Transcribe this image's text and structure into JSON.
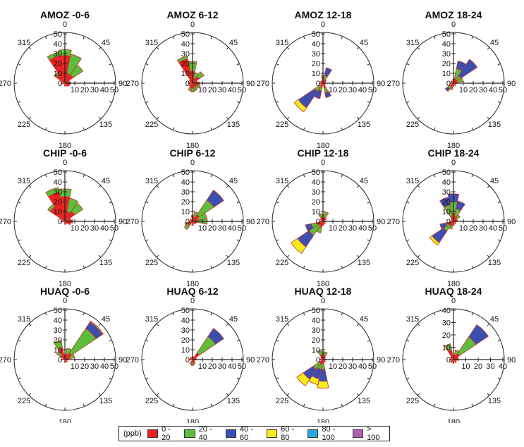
{
  "direction_labels": [
    "0",
    "45",
    "90",
    "135",
    "180",
    "225",
    "270",
    "315"
  ],
  "legend": {
    "unit": "(ppb)",
    "entries": [
      {
        "label": "0 - 20",
        "color": "#ee2222"
      },
      {
        "label": "20 - 40",
        "color": "#5cbf3c"
      },
      {
        "label": "40 - 60",
        "color": "#3a4fb0"
      },
      {
        "label": "60 - 80",
        "color": "#f5ec1a"
      },
      {
        "label": "80 - 100",
        "color": "#2aa7e0"
      },
      {
        "label": "> 100",
        "color": "#b25db0"
      }
    ]
  },
  "chart_data": [
    {
      "type": "polar-stacked-bar",
      "title": "AMOZ -0-6",
      "rmax": 50,
      "ticks": [
        "10",
        "20",
        "30",
        "40",
        "50"
      ],
      "wedges": [
        {
          "dir": 0,
          "stack": [
            28,
            6
          ]
        },
        {
          "dir": 22.5,
          "stack": [
            10,
            20
          ]
        },
        {
          "dir": 45,
          "stack": [
            10,
            12
          ]
        },
        {
          "dir": 67.5,
          "stack": [
            5
          ]
        },
        {
          "dir": 90,
          "stack": [
            6
          ]
        },
        {
          "dir": 112.5,
          "stack": [
            5
          ]
        },
        {
          "dir": 135,
          "stack": [
            4
          ]
        },
        {
          "dir": 180,
          "stack": [
            3
          ]
        },
        {
          "dir": 270,
          "stack": [
            4
          ]
        },
        {
          "dir": 315,
          "stack": [
            10,
            3
          ]
        },
        {
          "dir": 337.5,
          "stack": [
            28,
            4
          ]
        }
      ]
    },
    {
      "type": "polar-stacked-bar",
      "title": "AMOZ 6-12",
      "rmax": 50,
      "ticks": [
        "10",
        "20",
        "30",
        "40",
        "50"
      ],
      "wedges": [
        {
          "dir": 0,
          "stack": [
            12,
            10
          ]
        },
        {
          "dir": 22.5,
          "stack": [
            5,
            6
          ]
        },
        {
          "dir": 45,
          "stack": [
            8,
            6
          ]
        },
        {
          "dir": 67.5,
          "stack": [
            5
          ]
        },
        {
          "dir": 90,
          "stack": [
            7
          ]
        },
        {
          "dir": 112.5,
          "stack": [
            5,
            3
          ]
        },
        {
          "dir": 135,
          "stack": [
            4,
            3
          ]
        },
        {
          "dir": 157.5,
          "stack": [
            4,
            4
          ]
        },
        {
          "dir": 180,
          "stack": [
            5,
            4
          ]
        },
        {
          "dir": 202.5,
          "stack": [
            5,
            3
          ]
        },
        {
          "dir": 225,
          "stack": [
            4
          ]
        },
        {
          "dir": 270,
          "stack": [
            4
          ]
        },
        {
          "dir": 315,
          "stack": [
            4
          ]
        },
        {
          "dir": 337.5,
          "stack": [
            25,
            3
          ]
        }
      ]
    },
    {
      "type": "polar-stacked-bar",
      "title": "AMOZ 12-18",
      "rmax": 50,
      "ticks": [
        "10",
        "20",
        "30",
        "40",
        "50"
      ],
      "wedges": [
        {
          "dir": 0,
          "stack": [
            5,
            3
          ]
        },
        {
          "dir": 22.5,
          "stack": [
            3,
            5,
            8
          ]
        },
        {
          "dir": 45,
          "stack": [
            4
          ]
        },
        {
          "dir": 90,
          "stack": [
            3
          ]
        },
        {
          "dir": 135,
          "stack": [
            3
          ]
        },
        {
          "dir": 157.5,
          "stack": [
            5,
            5,
            5
          ]
        },
        {
          "dir": 202.5,
          "stack": [
            4,
            4,
            8
          ]
        },
        {
          "dir": 225,
          "stack": [
            3,
            7,
            20,
            5
          ]
        },
        {
          "dir": 270,
          "stack": [
            3
          ]
        },
        {
          "dir": 315,
          "stack": [
            3
          ]
        }
      ]
    },
    {
      "type": "polar-stacked-bar",
      "title": "AMOZ 18-24",
      "rmax": 50,
      "ticks": [
        "10",
        "20",
        "30",
        "40",
        "50"
      ],
      "wedges": [
        {
          "dir": 0,
          "stack": [
            4
          ]
        },
        {
          "dir": 22.5,
          "stack": [
            5,
            10,
            8
          ]
        },
        {
          "dir": 45,
          "stack": [
            4,
            5,
            20
          ]
        },
        {
          "dir": 67.5,
          "stack": [
            4,
            6
          ]
        },
        {
          "dir": 90,
          "stack": [
            3
          ]
        },
        {
          "dir": 135,
          "stack": [
            3
          ]
        },
        {
          "dir": 180,
          "stack": [
            3
          ]
        },
        {
          "dir": 202.5,
          "stack": [
            4,
            3
          ]
        },
        {
          "dir": 225,
          "stack": [
            4,
            3,
            3
          ]
        },
        {
          "dir": 270,
          "stack": [
            3
          ]
        },
        {
          "dir": 315,
          "stack": [
            3
          ]
        }
      ]
    },
    {
      "type": "polar-stacked-bar",
      "title": "CHIP -0-6",
      "rmax": 50,
      "ticks": [
        "10",
        "20",
        "30",
        "40",
        "50"
      ],
      "wedges": [
        {
          "dir": 0,
          "stack": [
            25,
            8
          ]
        },
        {
          "dir": 22.5,
          "stack": [
            10,
            14
          ]
        },
        {
          "dir": 45,
          "stack": [
            12,
            10
          ]
        },
        {
          "dir": 67.5,
          "stack": [
            6
          ]
        },
        {
          "dir": 90,
          "stack": [
            8
          ]
        },
        {
          "dir": 112.5,
          "stack": [
            6
          ]
        },
        {
          "dir": 135,
          "stack": [
            3
          ]
        },
        {
          "dir": 180,
          "stack": [
            3
          ]
        },
        {
          "dir": 270,
          "stack": [
            4
          ]
        },
        {
          "dir": 315,
          "stack": [
            18,
            3
          ]
        },
        {
          "dir": 337.5,
          "stack": [
            30,
            5
          ]
        }
      ]
    },
    {
      "type": "polar-stacked-bar",
      "title": "CHIP 6-12",
      "rmax": 50,
      "ticks": [
        "10",
        "20",
        "30",
        "40",
        "50"
      ],
      "wedges": [
        {
          "dir": 0,
          "stack": [
            6
          ]
        },
        {
          "dir": 22.5,
          "stack": [
            4,
            6
          ]
        },
        {
          "dir": 45,
          "stack": [
            8,
            18,
            12
          ]
        },
        {
          "dir": 67.5,
          "stack": [
            5,
            10
          ]
        },
        {
          "dir": 90,
          "stack": [
            5,
            10
          ]
        },
        {
          "dir": 112.5,
          "stack": [
            4
          ]
        },
        {
          "dir": 135,
          "stack": [
            3
          ]
        },
        {
          "dir": 180,
          "stack": [
            4
          ]
        },
        {
          "dir": 225,
          "stack": [
            5,
            5
          ]
        },
        {
          "dir": 247.5,
          "stack": [
            3,
            5
          ]
        },
        {
          "dir": 270,
          "stack": [
            3
          ]
        },
        {
          "dir": 315,
          "stack": [
            3
          ]
        }
      ]
    },
    {
      "type": "polar-stacked-bar",
      "title": "CHIP 12-18",
      "rmax": 50,
      "ticks": [
        "10",
        "20",
        "30",
        "40",
        "50"
      ],
      "wedges": [
        {
          "dir": 0,
          "stack": [
            4,
            3
          ]
        },
        {
          "dir": 22.5,
          "stack": [
            4,
            6
          ]
        },
        {
          "dir": 45,
          "stack": [
            4
          ]
        },
        {
          "dir": 90,
          "stack": [
            3
          ]
        },
        {
          "dir": 135,
          "stack": [
            3
          ]
        },
        {
          "dir": 180,
          "stack": [
            4
          ]
        },
        {
          "dir": 202.5,
          "stack": [
            6,
            6
          ]
        },
        {
          "dir": 225,
          "stack": [
            5,
            12,
            14,
            8
          ]
        },
        {
          "dir": 247.5,
          "stack": [
            6,
            6,
            6
          ]
        },
        {
          "dir": 270,
          "stack": [
            3
          ]
        },
        {
          "dir": 315,
          "stack": [
            3
          ]
        },
        {
          "dir": 337.5,
          "stack": [
            4,
            4
          ]
        }
      ]
    },
    {
      "type": "polar-stacked-bar",
      "title": "CHIP 18-24",
      "rmax": 50,
      "ticks": [
        "10",
        "20",
        "30",
        "40",
        "50"
      ],
      "wedges": [
        {
          "dir": 0,
          "stack": [
            8,
            12,
            8
          ]
        },
        {
          "dir": 22.5,
          "stack": [
            5,
            8,
            8
          ]
        },
        {
          "dir": 45,
          "stack": [
            4,
            4
          ]
        },
        {
          "dir": 67.5,
          "stack": [
            4
          ]
        },
        {
          "dir": 90,
          "stack": [
            3
          ]
        },
        {
          "dir": 135,
          "stack": [
            3
          ]
        },
        {
          "dir": 180,
          "stack": [
            4
          ]
        },
        {
          "dir": 202.5,
          "stack": [
            4,
            4
          ]
        },
        {
          "dir": 225,
          "stack": [
            5,
            7,
            14,
            3
          ]
        },
        {
          "dir": 247.5,
          "stack": [
            4,
            4,
            6
          ]
        },
        {
          "dir": 270,
          "stack": [
            3
          ]
        },
        {
          "dir": 315,
          "stack": [
            3
          ]
        },
        {
          "dir": 337.5,
          "stack": [
            5,
            12,
            8
          ]
        }
      ]
    },
    {
      "type": "polar-stacked-bar",
      "title": "HUAQ -0-6",
      "rmax": 50,
      "ticks": [
        "10",
        "20",
        "30",
        "40",
        "50"
      ],
      "wedges": [
        {
          "dir": 0,
          "stack": [
            5
          ]
        },
        {
          "dir": 22.5,
          "stack": [
            6,
            6
          ]
        },
        {
          "dir": 45,
          "stack": [
            8,
            30,
            8,
            1
          ]
        },
        {
          "dir": 67.5,
          "stack": [
            5,
            5
          ]
        },
        {
          "dir": 90,
          "stack": [
            3
          ]
        },
        {
          "dir": 135,
          "stack": [
            3
          ]
        },
        {
          "dir": 180,
          "stack": [
            3
          ]
        },
        {
          "dir": 270,
          "stack": [
            3
          ]
        },
        {
          "dir": 315,
          "stack": [
            5,
            5
          ]
        },
        {
          "dir": 337.5,
          "stack": [
            12,
            8
          ]
        }
      ]
    },
    {
      "type": "polar-stacked-bar",
      "title": "HUAQ 6-12",
      "rmax": 50,
      "ticks": [
        "10",
        "20",
        "30",
        "40",
        "50"
      ],
      "wedges": [
        {
          "dir": 0,
          "stack": [
            3
          ]
        },
        {
          "dir": 22.5,
          "stack": [
            3
          ]
        },
        {
          "dir": 45,
          "stack": [
            8,
            20,
            10
          ]
        },
        {
          "dir": 67.5,
          "stack": [
            4
          ]
        },
        {
          "dir": 90,
          "stack": [
            3
          ]
        },
        {
          "dir": 135,
          "stack": [
            3
          ]
        },
        {
          "dir": 157.5,
          "stack": [
            3,
            2
          ]
        },
        {
          "dir": 180,
          "stack": [
            3,
            3
          ]
        },
        {
          "dir": 202.5,
          "stack": [
            3,
            2
          ]
        },
        {
          "dir": 270,
          "stack": [
            3
          ]
        },
        {
          "dir": 315,
          "stack": [
            3
          ]
        }
      ]
    },
    {
      "type": "polar-stacked-bar",
      "title": "HUAQ 12-18",
      "rmax": 50,
      "ticks": [
        "10",
        "20",
        "30",
        "40",
        "50"
      ],
      "wedges": [
        {
          "dir": 0,
          "stack": [
            4,
            4
          ]
        },
        {
          "dir": 22.5,
          "stack": [
            4,
            4
          ]
        },
        {
          "dir": 45,
          "stack": [
            3
          ]
        },
        {
          "dir": 90,
          "stack": [
            3
          ]
        },
        {
          "dir": 135,
          "stack": [
            3
          ]
        },
        {
          "dir": 180,
          "stack": [
            4,
            6,
            12,
            7
          ]
        },
        {
          "dir": 202.5,
          "stack": [
            5,
            5,
            10,
            6
          ]
        },
        {
          "dir": 225,
          "stack": [
            4,
            8,
            12,
            8
          ]
        },
        {
          "dir": 270,
          "stack": [
            3
          ]
        },
        {
          "dir": 315,
          "stack": [
            3
          ]
        },
        {
          "dir": 337.5,
          "stack": [
            5,
            5
          ]
        }
      ]
    },
    {
      "type": "polar-stacked-bar",
      "title": "HUAQ 18-24",
      "rmax": 40,
      "ticks": [
        "10",
        "20",
        "30",
        "40"
      ],
      "wedges": [
        {
          "dir": 0,
          "stack": [
            3
          ]
        },
        {
          "dir": 22.5,
          "stack": [
            4,
            4
          ]
        },
        {
          "dir": 45,
          "stack": [
            6,
            16,
            12
          ]
        },
        {
          "dir": 67.5,
          "stack": [
            4
          ]
        },
        {
          "dir": 90,
          "stack": [
            4
          ]
        },
        {
          "dir": 135,
          "stack": [
            3
          ]
        },
        {
          "dir": 180,
          "stack": [
            3
          ]
        },
        {
          "dir": 225,
          "stack": [
            3
          ]
        },
        {
          "dir": 270,
          "stack": [
            3
          ]
        },
        {
          "dir": 315,
          "stack": [
            3
          ]
        },
        {
          "dir": 337.5,
          "stack": [
            8,
            5
          ]
        }
      ]
    }
  ]
}
